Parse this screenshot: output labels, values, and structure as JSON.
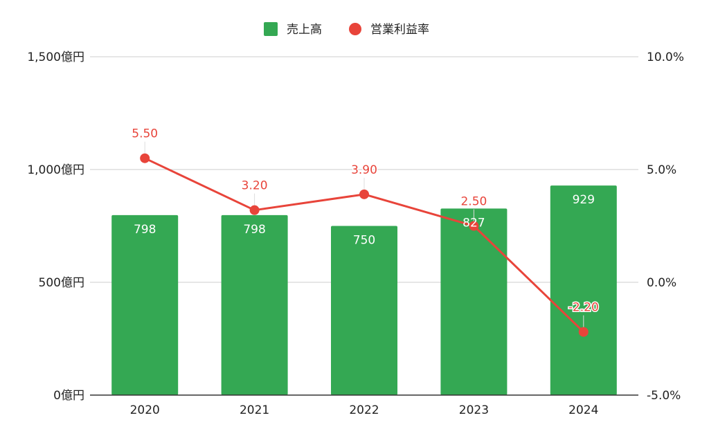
{
  "chart_data": {
    "type": "bar",
    "categories": [
      "2020",
      "2021",
      "2022",
      "2023",
      "2024"
    ],
    "series": [
      {
        "name": "売上高",
        "type": "bar",
        "axis": "left",
        "color": "#34a853",
        "values": [
          798,
          798,
          750,
          827,
          929
        ],
        "labels": [
          "798",
          "798",
          "750",
          "827",
          "929"
        ]
      },
      {
        "name": "営業利益率",
        "type": "line",
        "axis": "right",
        "color": "#e8443a",
        "values": [
          5.5,
          3.2,
          3.9,
          2.5,
          -2.2
        ],
        "labels": [
          "5.50",
          "3.20",
          "3.90",
          "2.50",
          "-2.20"
        ]
      }
    ],
    "y_left": {
      "range": [
        0,
        1500
      ],
      "ticks": [
        0,
        500,
        1000,
        1500
      ],
      "tick_labels": [
        "0億円",
        "500億円",
        "1,000億円",
        "1,500億円"
      ]
    },
    "y_right": {
      "range": [
        -5,
        10
      ],
      "ticks": [
        -5,
        0,
        5,
        10
      ],
      "tick_labels": [
        "-5.0%",
        "0.0%",
        "5.0%",
        "10.0%"
      ]
    },
    "grid": true,
    "legend_position": "top-center"
  }
}
